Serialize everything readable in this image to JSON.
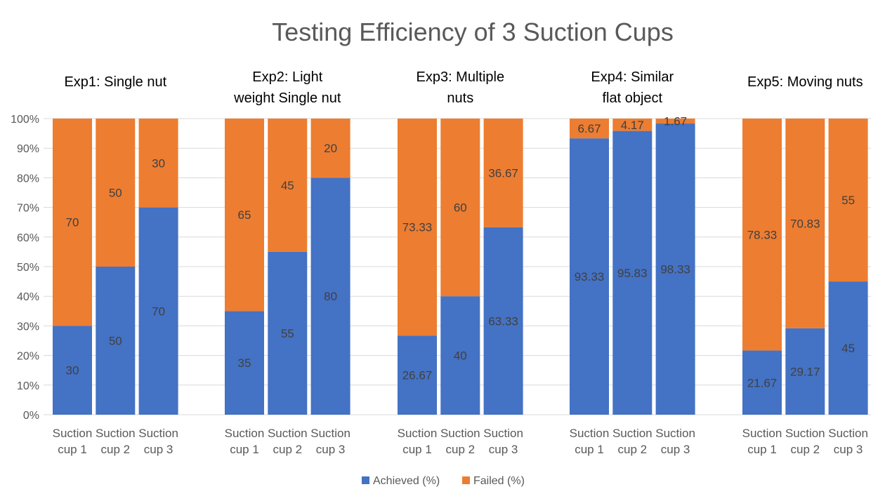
{
  "chart_data": {
    "type": "bar",
    "stacked": true,
    "percent_stacked": true,
    "title": "Testing Efficiency of 3 Suction Cups",
    "y_ticks": [
      "0%",
      "10%",
      "20%",
      "30%",
      "40%",
      "50%",
      "60%",
      "70%",
      "80%",
      "90%",
      "100%"
    ],
    "ylim": [
      0,
      100
    ],
    "grid": true,
    "legend_position": "bottom",
    "groups": [
      {
        "label": "Exp1: Single nut",
        "categories": [
          [
            "Suction",
            "cup 1"
          ],
          [
            "Suction",
            "cup 2"
          ],
          [
            "Suction",
            "cup 3"
          ]
        ],
        "achieved": [
          30,
          50,
          70
        ],
        "failed": [
          70,
          50,
          30
        ]
      },
      {
        "label": "Exp2: Light weight Single nut",
        "categories": [
          [
            "Suction",
            "cup 1"
          ],
          [
            "Suction",
            "cup 2"
          ],
          [
            "Suction",
            "cup 3"
          ]
        ],
        "achieved": [
          35,
          55,
          80
        ],
        "failed": [
          65,
          45,
          20
        ]
      },
      {
        "label": "Exp3: Multiple nuts",
        "categories": [
          [
            "Suction",
            "cup 1"
          ],
          [
            "Suction",
            "cup 2"
          ],
          [
            "Suction",
            "cup 3"
          ]
        ],
        "achieved": [
          26.67,
          40,
          63.33
        ],
        "failed": [
          73.33,
          60,
          36.67
        ]
      },
      {
        "label": "Exp4: Similar flat object",
        "categories": [
          [
            "Suction",
            "cup 1"
          ],
          [
            "Suction",
            "cup 2"
          ],
          [
            "Suction",
            "cup 3"
          ]
        ],
        "achieved": [
          93.33,
          95.83,
          98.33
        ],
        "failed": [
          6.67,
          4.17,
          1.67
        ]
      },
      {
        "label": "Exp5: Moving nuts",
        "categories": [
          [
            "Suction",
            "cup 1"
          ],
          [
            "Suction",
            "cup 2"
          ],
          [
            "Suction",
            "cup 3"
          ]
        ],
        "achieved": [
          21.67,
          29.17,
          45
        ],
        "failed": [
          78.33,
          70.83,
          55
        ]
      }
    ],
    "series": [
      {
        "name": "Achieved (%)",
        "key": "achieved",
        "color": "#4472C4"
      },
      {
        "name": "Failed (%)",
        "key": "failed",
        "color": "#ED7D31"
      }
    ]
  }
}
